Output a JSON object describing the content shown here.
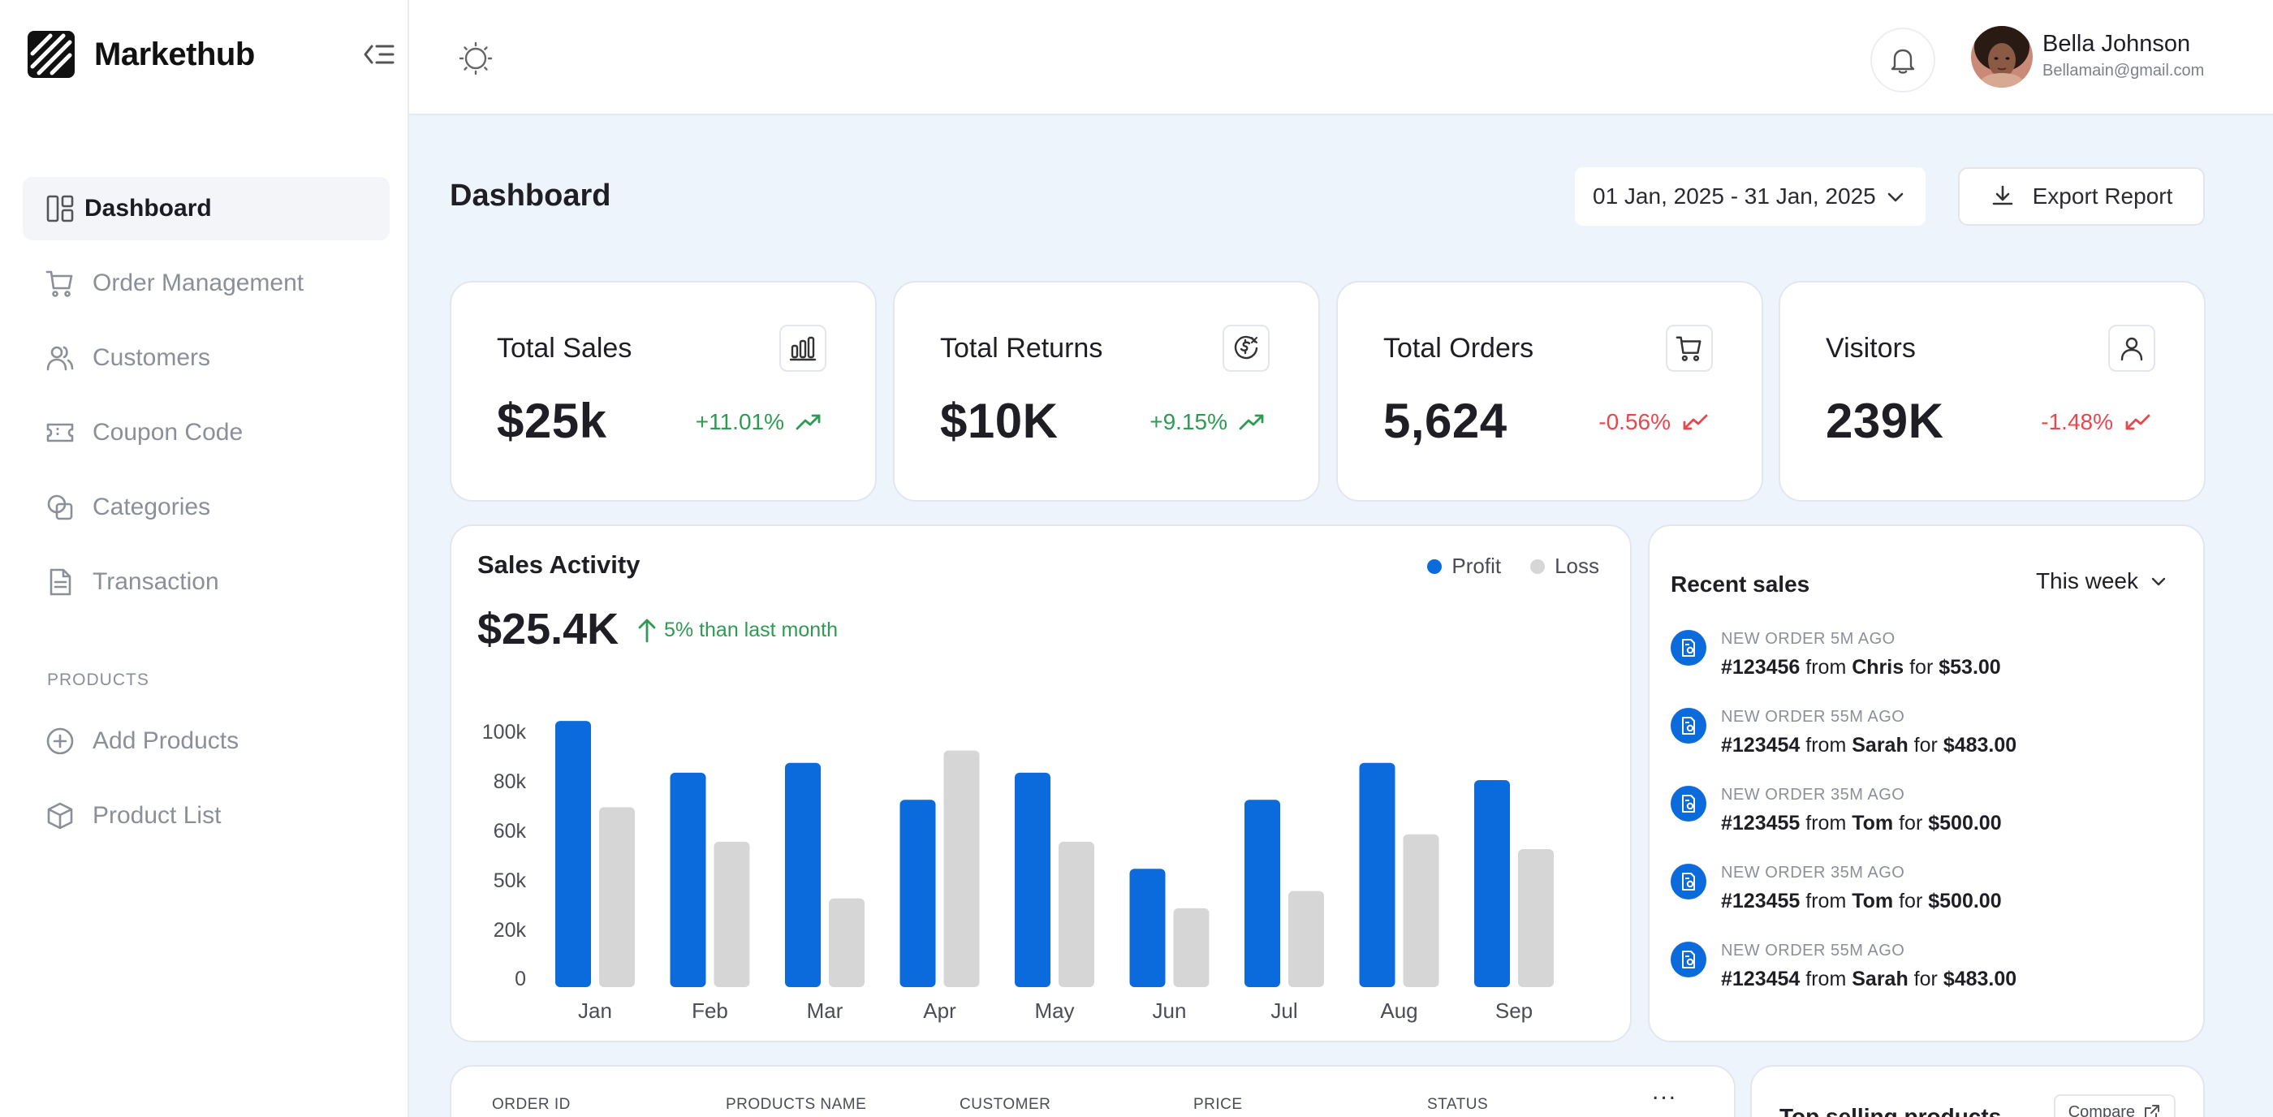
{
  "brand": {
    "name": "Markethub"
  },
  "sidebar": {
    "items": [
      {
        "label": "Dashboard",
        "icon": "dashboard-icon",
        "active": true
      },
      {
        "label": "Order Management",
        "icon": "cart-icon"
      },
      {
        "label": "Customers",
        "icon": "users-icon"
      },
      {
        "label": "Coupon Code",
        "icon": "ticket-icon"
      },
      {
        "label": "Categories",
        "icon": "categories-icon"
      },
      {
        "label": "Transaction",
        "icon": "document-icon"
      }
    ],
    "section_label": "PRODUCTS",
    "product_items": [
      {
        "label": "Add Products",
        "icon": "plus-circle-icon"
      },
      {
        "label": "Product List",
        "icon": "box-icon"
      }
    ]
  },
  "user": {
    "name": "Bella Johnson",
    "email": "Bellamain@gmail.com"
  },
  "header": {
    "title": "Dashboard",
    "date_range": "01 Jan, 2025 - 31 Jan, 2025",
    "export_label": "Export Report"
  },
  "stats": [
    {
      "title": "Total Sales",
      "value": "$25k",
      "change": "+11.01%",
      "trend": "up",
      "icon": "bar-chart-icon"
    },
    {
      "title": "Total Returns",
      "value": "$10K",
      "change": "+9.15%",
      "trend": "up",
      "icon": "dollar-return-icon"
    },
    {
      "title": "Total Orders",
      "value": "5,624",
      "change": "-0.56%",
      "trend": "down",
      "icon": "cart-icon"
    },
    {
      "title": "Visitors",
      "value": "239K",
      "change": "-1.48%",
      "trend": "down",
      "icon": "user-icon"
    }
  ],
  "sales_activity": {
    "title": "Sales Activity",
    "total": "$25.4K",
    "delta": "5% than last month",
    "legend": [
      "Profit",
      "Loss"
    ]
  },
  "chart_data": {
    "type": "bar",
    "categories": [
      "Jan",
      "Feb",
      "Mar",
      "Apr",
      "May",
      "Jun",
      "Jul",
      "Aug",
      "Sep"
    ],
    "series": [
      {
        "name": "Profit",
        "color": "#0b6bdc",
        "values": [
          108,
          87,
          91,
          76,
          87,
          48,
          76,
          91,
          84
        ]
      },
      {
        "name": "Loss",
        "color": "#d6d6d6",
        "values": [
          73,
          59,
          36,
          96,
          59,
          32,
          39,
          62,
          56
        ]
      }
    ],
    "y_tick_labels": [
      "0",
      "20k",
      "50k",
      "60k",
      "80k",
      "100k"
    ],
    "ylim": [
      0,
      110
    ],
    "grid": false
  },
  "recent_sales": {
    "title": "Recent sales",
    "period": "This week",
    "items": [
      {
        "meta": "NEW ORDER 5M AGO",
        "order": "#123456",
        "from": "from",
        "name": "Chris",
        "for": "for",
        "amount": "$53.00"
      },
      {
        "meta": "NEW ORDER 55M AGO",
        "order": "#123454",
        "from": "from",
        "name": "Sarah",
        "for": "for",
        "amount": "$483.00"
      },
      {
        "meta": "NEW ORDER 35M AGO",
        "order": "#123455",
        "from": "from",
        "name": "Tom",
        "for": "for",
        "amount": "$500.00"
      },
      {
        "meta": "NEW ORDER 35M AGO",
        "order": "#123455",
        "from": "from",
        "name": "Tom",
        "for": "for",
        "amount": "$500.00"
      },
      {
        "meta": "NEW ORDER 55M AGO",
        "order": "#123454",
        "from": "from",
        "name": "Sarah",
        "for": "for",
        "amount": "$483.00"
      }
    ]
  },
  "orders_table": {
    "columns": [
      "ORDER ID",
      "PRODUCTS NAME",
      "CUSTOMER",
      "PRICE",
      "STATUS"
    ],
    "more": "..."
  },
  "top_selling": {
    "title": "Top selling products",
    "compare_label": "Compare"
  }
}
